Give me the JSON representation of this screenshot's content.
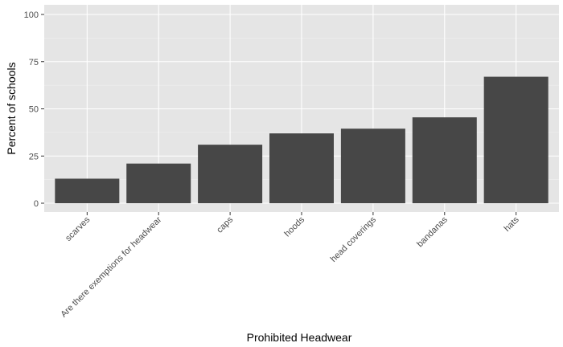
{
  "chart_data": {
    "type": "bar",
    "title": "",
    "xlabel": "Prohibited Headwear",
    "ylabel": "Percent of schools",
    "categories": [
      "scarves",
      "Are there exemptions for headwear",
      "caps",
      "hoods",
      "head coverings",
      "bandanas",
      "hats"
    ],
    "values": [
      13,
      21,
      31,
      37,
      39.5,
      45.5,
      67
    ],
    "ylim": [
      0,
      100
    ],
    "yticks": [
      "0",
      "25",
      "50",
      "75",
      "100"
    ],
    "grid": true,
    "legend": "none",
    "colors": {
      "bar": "#474747",
      "panel": "#e5e5e5",
      "grid_major": "#ffffff"
    }
  }
}
